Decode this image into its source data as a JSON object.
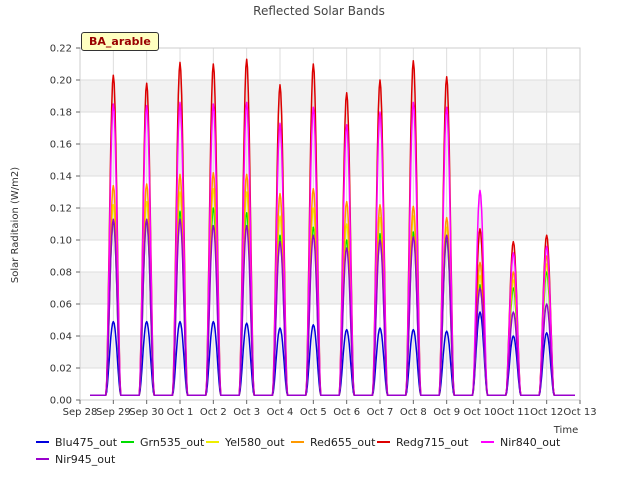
{
  "chart_data": {
    "type": "line",
    "title": "Reflected Solar Bands",
    "xlabel": "Time",
    "ylabel": "Solar Raditaion (W/m2)",
    "site_label": "BA_arable",
    "x_ticks": [
      "Sep 28",
      "Sep 29",
      "Sep 30",
      "Oct 1",
      "Oct 2",
      "Oct 3",
      "Oct 4",
      "Oct 5",
      "Oct 6",
      "Oct 7",
      "Oct 8",
      "Oct 9",
      "Oct 10",
      "Oct 11",
      "Oct 12",
      "Oct 13"
    ],
    "xlim": [
      "Sep 28",
      "Oct 13"
    ],
    "ylim": [
      0,
      0.22
    ],
    "y_ticks": [
      "0.00",
      "0.02",
      "0.04",
      "0.06",
      "0.08",
      "0.10",
      "0.12",
      "0.14",
      "0.16",
      "0.18",
      "0.20",
      "0.22"
    ],
    "grid": true,
    "legend_position": "bottom",
    "days": [
      "Sep 29",
      "Sep 30",
      "Oct 1",
      "Oct 2",
      "Oct 3",
      "Oct 4",
      "Oct 5",
      "Oct 6",
      "Oct 7",
      "Oct 8",
      "Oct 9",
      "Oct 10",
      "Oct 11",
      "Oct 12"
    ],
    "series": [
      {
        "name": "Blu475_out",
        "color": "#0000dd",
        "daily_peak": [
          0.049,
          0.049,
          0.049,
          0.049,
          0.048,
          0.045,
          0.047,
          0.044,
          0.045,
          0.044,
          0.043,
          0.055,
          0.04,
          0.042
        ]
      },
      {
        "name": "Grn535_out",
        "color": "#00dd00",
        "daily_peak": [
          0.112,
          0.112,
          0.118,
          0.12,
          0.117,
          0.103,
          0.108,
          0.1,
          0.104,
          0.105,
          0.101,
          0.072,
          0.07,
          0.08
        ]
      },
      {
        "name": "Yel580_out",
        "color": "#eeee00",
        "daily_peak": [
          0.122,
          0.124,
          0.13,
          0.132,
          0.13,
          0.115,
          0.12,
          0.11,
          0.114,
          0.115,
          0.108,
          0.078,
          0.075,
          0.085
        ]
      },
      {
        "name": "Red655_out",
        "color": "#ff9900",
        "daily_peak": [
          0.134,
          0.135,
          0.141,
          0.142,
          0.141,
          0.129,
          0.132,
          0.124,
          0.122,
          0.121,
          0.114,
          0.086,
          0.08,
          0.09
        ]
      },
      {
        "name": "Redg715_out",
        "color": "#dd0000",
        "daily_peak": [
          0.203,
          0.198,
          0.211,
          0.21,
          0.213,
          0.197,
          0.21,
          0.192,
          0.2,
          0.212,
          0.202,
          0.107,
          0.099,
          0.103
        ]
      },
      {
        "name": "Nir840_out",
        "color": "#ff00ff",
        "daily_peak": [
          0.185,
          0.184,
          0.186,
          0.185,
          0.186,
          0.173,
          0.183,
          0.172,
          0.18,
          0.186,
          0.183,
          0.131,
          0.092,
          0.096
        ]
      },
      {
        "name": "Nir945_out",
        "color": "#9900cc",
        "daily_peak": [
          0.113,
          0.113,
          0.113,
          0.109,
          0.109,
          0.099,
          0.103,
          0.095,
          0.1,
          0.102,
          0.103,
          0.07,
          0.055,
          0.06
        ]
      }
    ],
    "night_value": 0.003
  }
}
